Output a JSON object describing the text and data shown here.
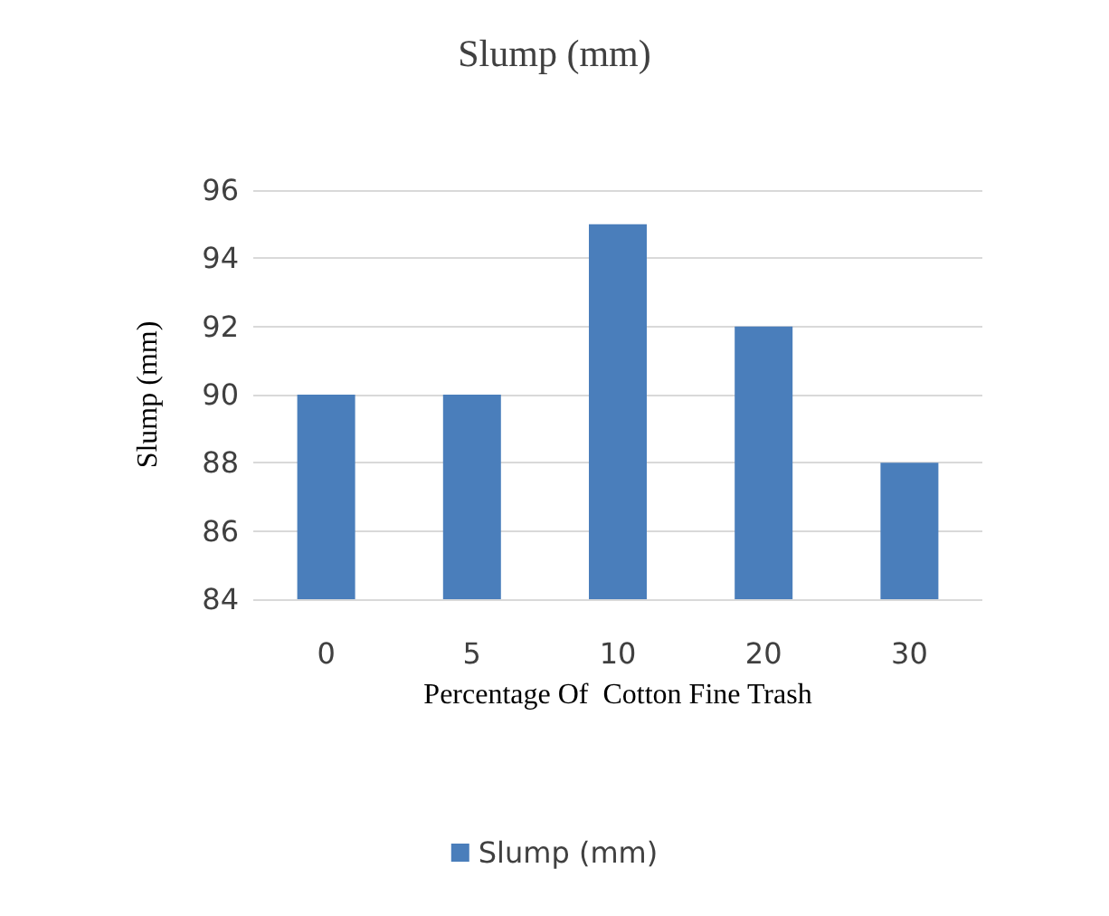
{
  "chart_data": {
    "type": "bar",
    "title": "Slump (mm)",
    "xlabel": "Percentage Of  Cotton Fine Trash",
    "ylabel": "Slump (mm)",
    "categories": [
      "0",
      "5",
      "10",
      "20",
      "30"
    ],
    "series": [
      {
        "name": "Slump (mm)",
        "color": "#4a7ebb",
        "values": [
          90,
          90,
          95,
          92,
          88
        ]
      }
    ],
    "ylim": [
      84,
      96
    ],
    "yticks": [
      84,
      86,
      88,
      90,
      92,
      94,
      96
    ],
    "grid": "y",
    "legend": "bottom"
  }
}
